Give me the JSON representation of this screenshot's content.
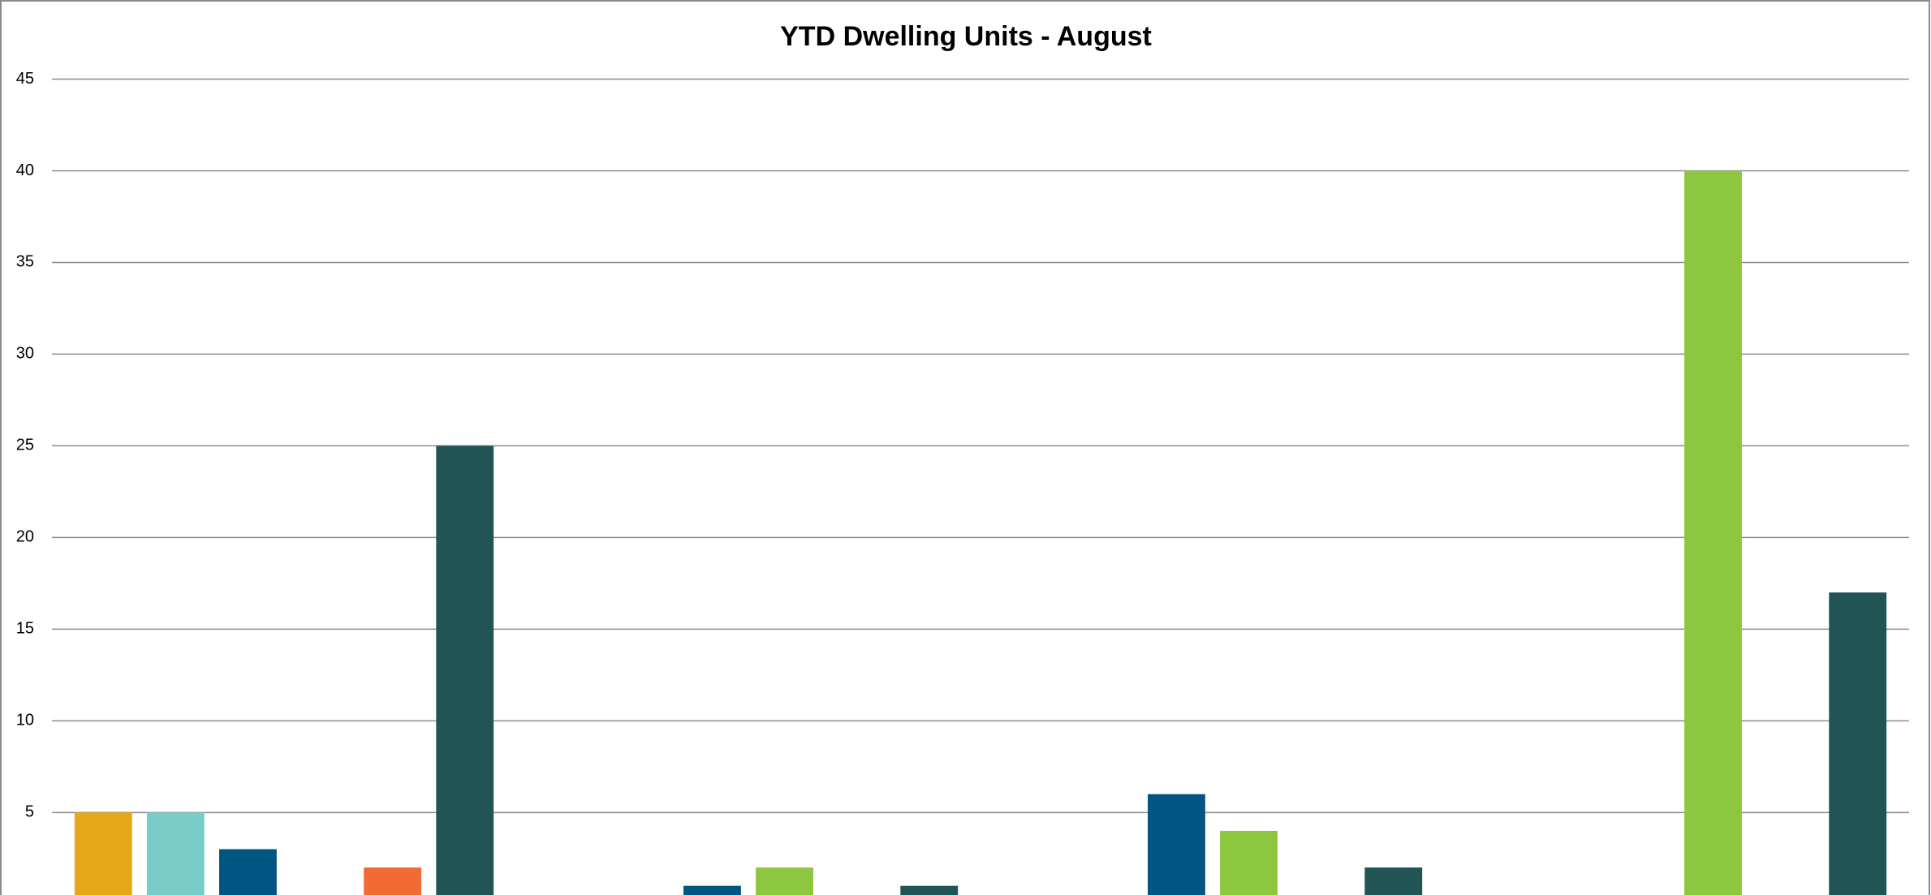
{
  "chart_data": {
    "type": "bar",
    "title": "YTD Dwelling Units - August",
    "categories": [
      null,
      null,
      null,
      null
    ],
    "series": [
      {
        "color": "#E6A817",
        "values": [
          5,
          0,
          0,
          0
        ]
      },
      {
        "color": "#7ACCC8",
        "values": [
          5,
          0,
          0,
          0
        ]
      },
      {
        "color": "#005582",
        "values": [
          3,
          1,
          6,
          0
        ]
      },
      {
        "color": "#8DC63F",
        "values": [
          0,
          2,
          4,
          40
        ]
      },
      {
        "color": "#F26B35",
        "values": [
          2,
          0,
          0,
          0
        ]
      },
      {
        "color": "#215555",
        "values": [
          25,
          1,
          2,
          17
        ]
      }
    ],
    "ylim": [
      0.5,
      45
    ],
    "yticks": [
      5,
      10,
      15,
      20,
      25,
      30,
      35,
      40,
      45
    ],
    "grid": true
  }
}
